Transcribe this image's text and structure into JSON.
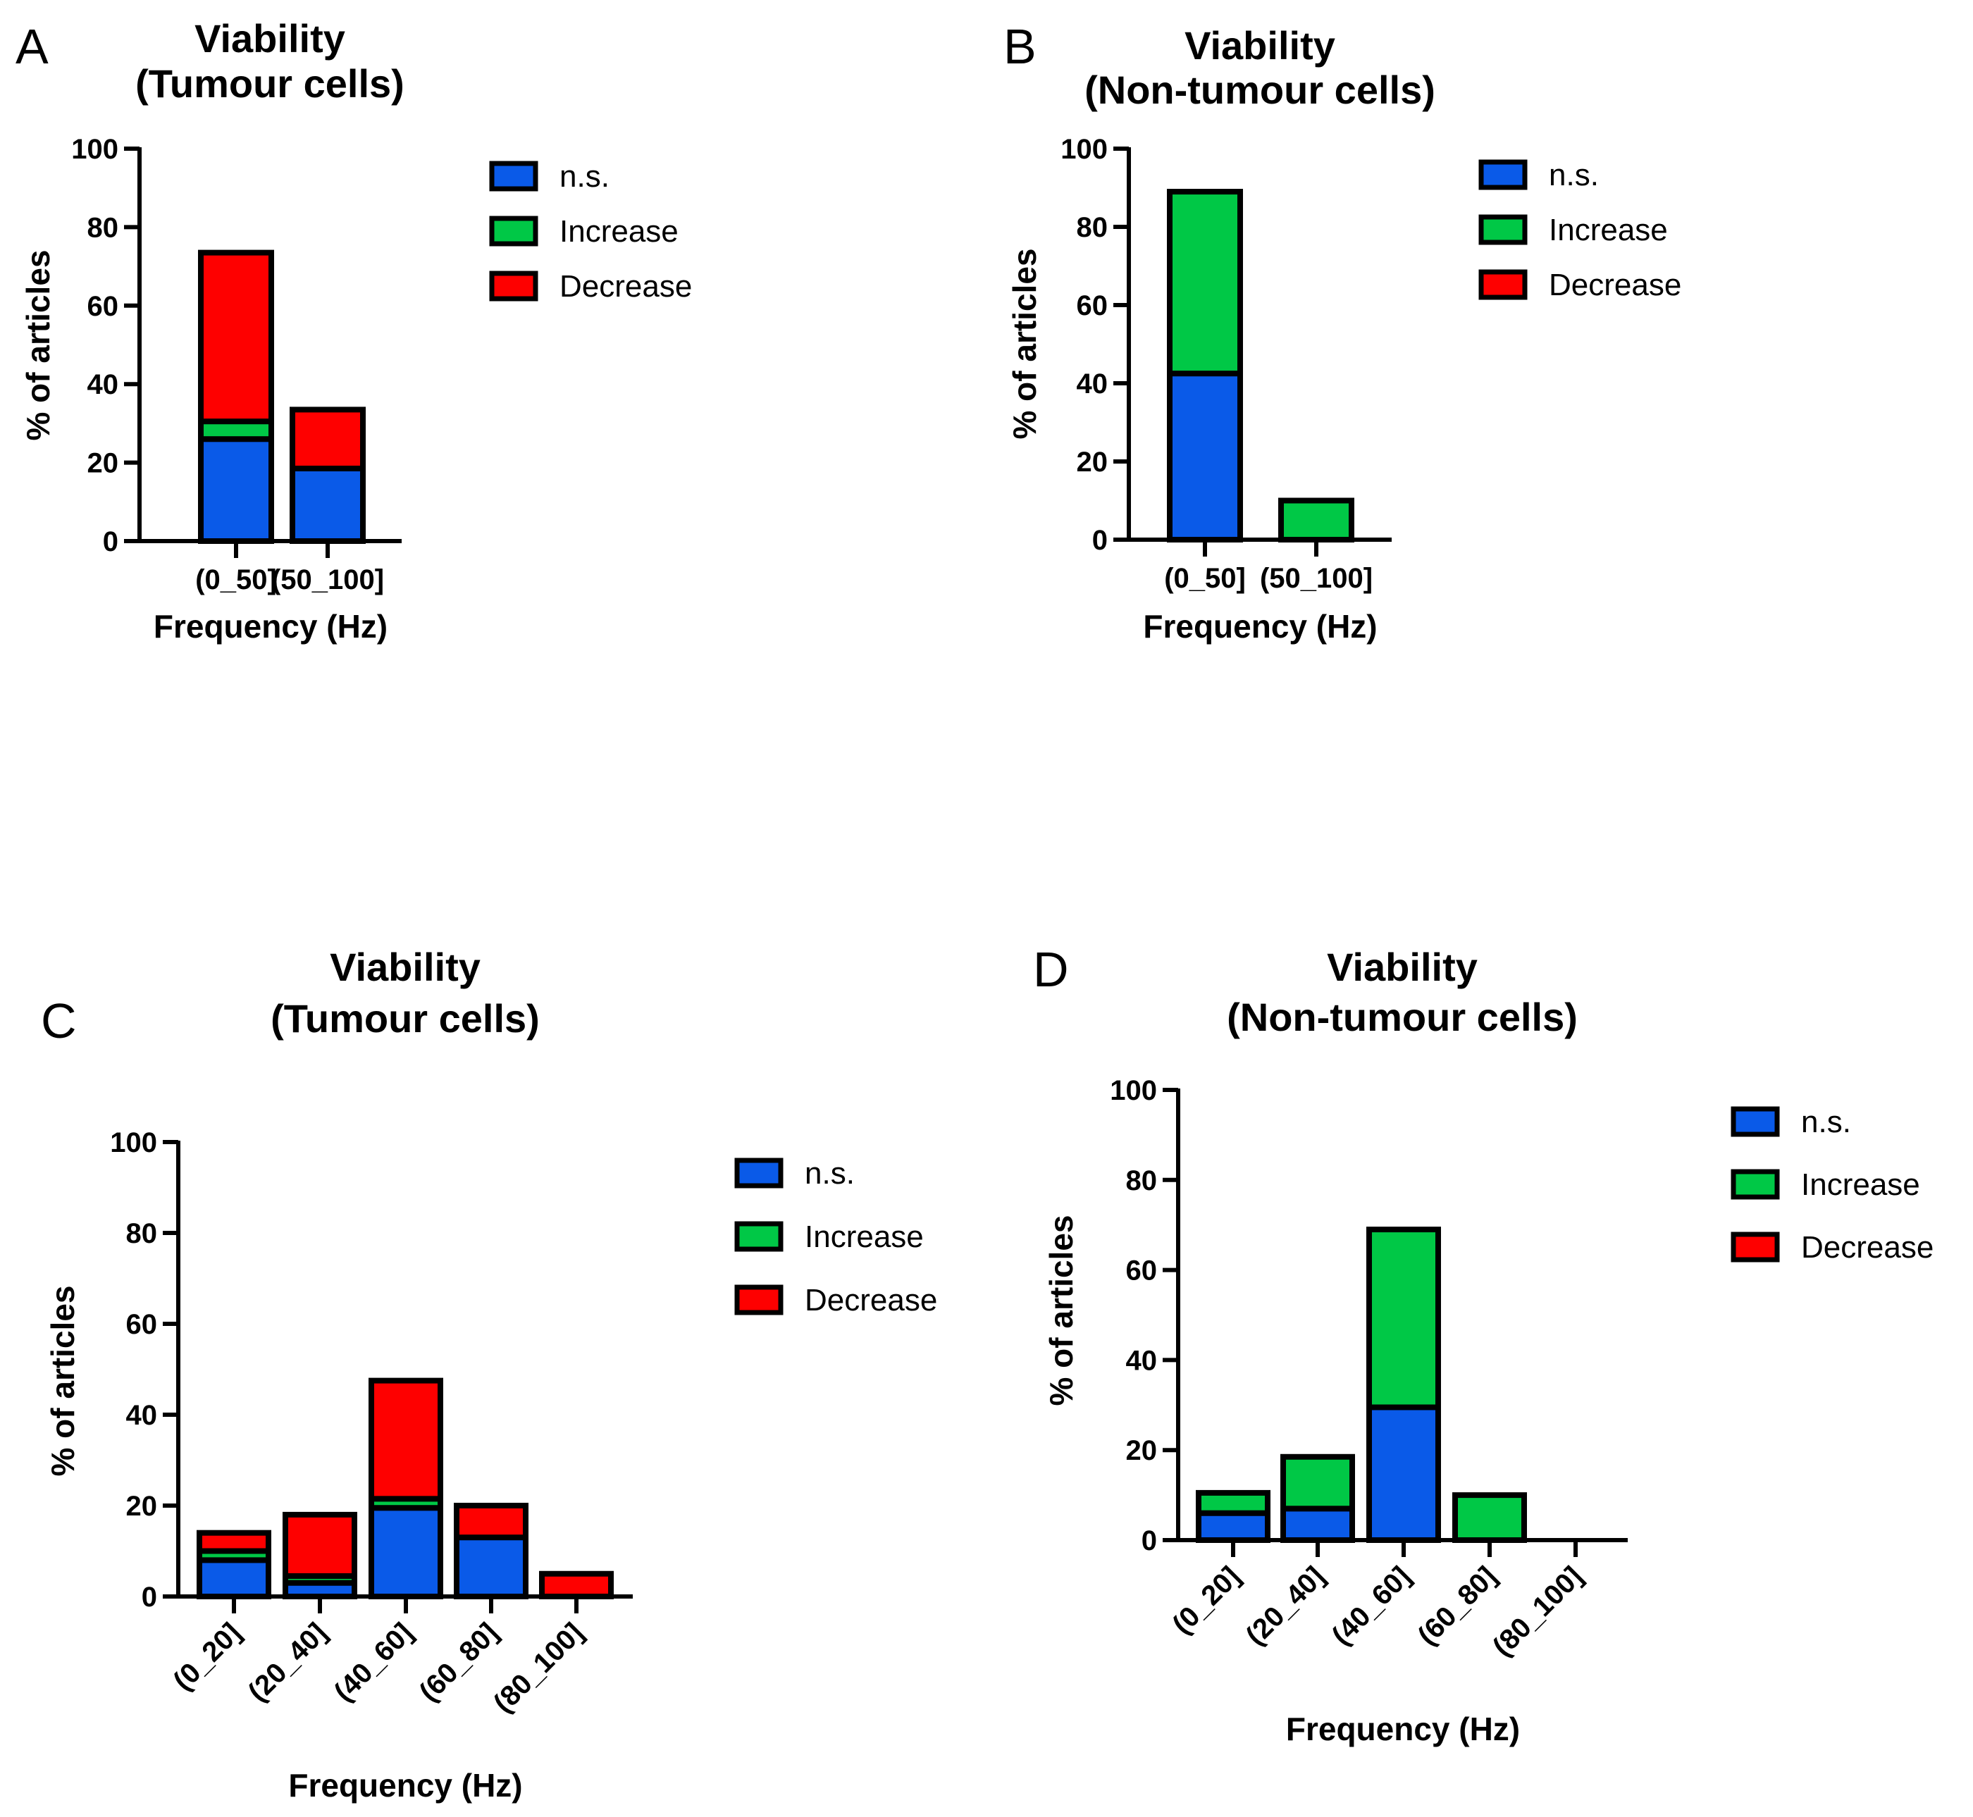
{
  "colors": {
    "ns": "#0a5ae8",
    "increase": "#00c846",
    "decrease": "#fe0000",
    "outline": "#000000"
  },
  "chart_data": [
    {
      "type": "bar",
      "stacked": true,
      "panel": "A",
      "title": [
        "Viability",
        "(Tumour cells)"
      ],
      "xlabel": "Frequency (Hz)",
      "ylabel": "% of articles",
      "ylim": [
        0,
        100
      ],
      "yticks": [
        0,
        20,
        40,
        60,
        80,
        100
      ],
      "categories": [
        "(0_50]",
        "(50_100]"
      ],
      "series": [
        {
          "name": "n.s.",
          "values": [
            26,
            18.5
          ]
        },
        {
          "name": "Increase",
          "values": [
            4.5,
            0
          ]
        },
        {
          "name": "Decrease",
          "values": [
            43,
            15
          ]
        }
      ],
      "legend": [
        "n.s.",
        "Increase",
        "Decrease"
      ]
    },
    {
      "type": "bar",
      "stacked": true,
      "panel": "B",
      "title": [
        "Viability",
        "(Non-tumour cells)"
      ],
      "xlabel": "Frequency (Hz)",
      "ylabel": "% of articles",
      "ylim": [
        0,
        100
      ],
      "yticks": [
        0,
        20,
        40,
        60,
        80,
        100
      ],
      "categories": [
        "(0_50]",
        "(50_100]"
      ],
      "series": [
        {
          "name": "n.s.",
          "values": [
            42.5,
            0
          ]
        },
        {
          "name": "Increase",
          "values": [
            46.5,
            10
          ]
        },
        {
          "name": "Decrease",
          "values": [
            0,
            0
          ]
        }
      ],
      "legend": [
        "n.s.",
        "Increase",
        "Decrease"
      ]
    },
    {
      "type": "bar",
      "stacked": true,
      "panel": "C",
      "title": [
        "Viability",
        "(Tumour cells)"
      ],
      "xlabel": "Frequency (Hz)",
      "ylabel": "% of articles",
      "ylim": [
        0,
        100
      ],
      "yticks": [
        0,
        20,
        40,
        60,
        80,
        100
      ],
      "categories": [
        "(0_20]",
        "(20_40]",
        "(40_60]",
        "(60_80]",
        "(80_100]"
      ],
      "series": [
        {
          "name": "n.s.",
          "values": [
            8,
            3,
            19.5,
            13,
            0
          ]
        },
        {
          "name": "Increase",
          "values": [
            2,
            1.5,
            2,
            0,
            0
          ]
        },
        {
          "name": "Decrease",
          "values": [
            4,
            13.5,
            26,
            7,
            5
          ]
        }
      ],
      "legend": [
        "n.s.",
        "Increase",
        "Decrease"
      ]
    },
    {
      "type": "bar",
      "stacked": true,
      "panel": "D",
      "title": [
        "Viability",
        "(Non-tumour cells)"
      ],
      "xlabel": "Frequency (Hz)",
      "ylabel": "% of articles",
      "ylim": [
        0,
        100
      ],
      "yticks": [
        0,
        20,
        40,
        60,
        80,
        100
      ],
      "categories": [
        "(0_20]",
        "(20_40]",
        "(40_60]",
        "(60_80]",
        "(80_100]"
      ],
      "series": [
        {
          "name": "n.s.",
          "values": [
            6,
            7,
            29.5,
            0,
            0
          ]
        },
        {
          "name": "Increase",
          "values": [
            4.5,
            11.5,
            39.5,
            10,
            0
          ]
        },
        {
          "name": "Decrease",
          "values": [
            0,
            0,
            0,
            0,
            0
          ]
        }
      ],
      "legend": [
        "n.s.",
        "Increase",
        "Decrease"
      ]
    }
  ]
}
